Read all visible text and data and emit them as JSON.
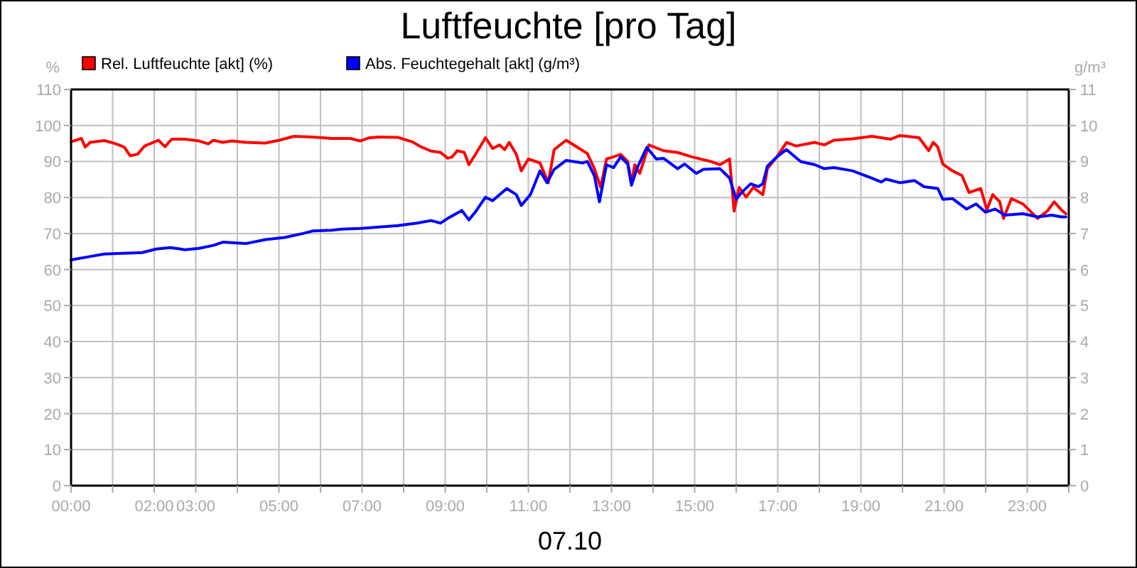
{
  "chart_data": {
    "type": "line",
    "title": "Luftfeuchte [pro Tag]",
    "xlabel": "07.10",
    "ylabel": "%",
    "y2label": "g/m³",
    "xlim": [
      0,
      24
    ],
    "xticks": [
      {
        "value": 0,
        "label": "00:00"
      },
      {
        "value": 1,
        "label": null
      },
      {
        "value": 2,
        "label": "02:00"
      },
      {
        "value": 3,
        "label": "03:00"
      },
      {
        "value": 4,
        "label": null
      },
      {
        "value": 5,
        "label": "05:00"
      },
      {
        "value": 6,
        "label": null
      },
      {
        "value": 7,
        "label": "07:00"
      },
      {
        "value": 8,
        "label": null
      },
      {
        "value": 9,
        "label": "09:00"
      },
      {
        "value": 10,
        "label": null
      },
      {
        "value": 11,
        "label": "11:00"
      },
      {
        "value": 12,
        "label": null
      },
      {
        "value": 13,
        "label": "13:00"
      },
      {
        "value": 14,
        "label": null
      },
      {
        "value": 15,
        "label": "15:00"
      },
      {
        "value": 16,
        "label": null
      },
      {
        "value": 17,
        "label": "17:00"
      },
      {
        "value": 18,
        "label": null
      },
      {
        "value": 19,
        "label": "19:00"
      },
      {
        "value": 20,
        "label": null
      },
      {
        "value": 21,
        "label": "21:00"
      },
      {
        "value": 22,
        "label": null
      },
      {
        "value": 23,
        "label": "23:00"
      },
      {
        "value": 24,
        "label": null
      }
    ],
    "ylim": [
      0,
      110
    ],
    "yticks": [
      0,
      10,
      20,
      30,
      40,
      50,
      60,
      70,
      80,
      90,
      100,
      110
    ],
    "y2lim": [
      0,
      11
    ],
    "y2ticks": [
      0,
      1,
      2,
      3,
      4,
      5,
      6,
      7,
      8,
      9,
      10,
      11
    ],
    "grid": true,
    "legend": "top left",
    "marker": "none",
    "line_style": "solid",
    "series": [
      {
        "name": "Rel. Luftfeuchte [akt] (%)",
        "color": "#ff0000",
        "x": [
          0,
          0.25,
          0.34,
          0.46,
          0.8,
          1.03,
          1.28,
          1.42,
          1.6,
          1.77,
          2.1,
          2.26,
          2.42,
          2.74,
          3.08,
          3.3,
          3.42,
          3.65,
          3.87,
          4.2,
          4.67,
          5.01,
          5.36,
          5.81,
          6.27,
          6.72,
          6.95,
          7.18,
          7.41,
          7.86,
          8.2,
          8.43,
          8.66,
          8.89,
          9.06,
          9.17,
          9.29,
          9.46,
          9.57,
          9.74,
          9.97,
          10.14,
          10.31,
          10.43,
          10.54,
          10.71,
          10.83,
          11.0,
          11.28,
          11.48,
          11.62,
          11.91,
          12.42,
          12.59,
          12.74,
          12.88,
          13.05,
          13.22,
          13.39,
          13.48,
          13.56,
          13.68,
          13.9,
          14.25,
          14.59,
          14.93,
          15.39,
          15.61,
          15.84,
          15.95,
          16.07,
          16.24,
          16.41,
          16.64,
          16.75,
          16.98,
          17.21,
          17.44,
          17.89,
          18.12,
          18.35,
          18.8,
          19.26,
          19.71,
          19.94,
          20.4,
          20.63,
          20.74,
          20.85,
          20.97,
          21.2,
          21.43,
          21.6,
          21.88,
          22.03,
          22.17,
          22.34,
          22.43,
          22.62,
          22.9,
          23.25,
          23.48,
          23.65,
          23.82,
          23.93
        ],
        "values": [
          95.5,
          96.4,
          94,
          95.3,
          95.8,
          95.1,
          94,
          91.6,
          92,
          94.3,
          95.9,
          94.1,
          96.2,
          96.2,
          95.7,
          94.9,
          95.9,
          95.3,
          95.7,
          95.3,
          95.1,
          95.9,
          97,
          96.8,
          96.4,
          96.4,
          95.7,
          96.6,
          96.8,
          96.7,
          95.5,
          94,
          92.9,
          92.5,
          90.9,
          91.3,
          93,
          92.5,
          89.1,
          92.2,
          96.6,
          93.6,
          94.6,
          93.3,
          95.3,
          92,
          87.4,
          90.7,
          89.6,
          84.1,
          93.3,
          95.9,
          92.2,
          88,
          82.8,
          90.7,
          91.3,
          92,
          90,
          84.1,
          89.1,
          86.7,
          94.6,
          93,
          92.5,
          91.3,
          90,
          89.1,
          90.7,
          76.2,
          82.8,
          80.1,
          82.8,
          80.8,
          88,
          91.3,
          95.3,
          94.3,
          95.3,
          94.6,
          95.9,
          96.3,
          97,
          96.2,
          97.2,
          96.6,
          93,
          95.3,
          94,
          89.3,
          87.4,
          86.1,
          81.4,
          82.5,
          76.6,
          80.8,
          78.8,
          74.2,
          79.7,
          78.2,
          74.2,
          76.2,
          78.8,
          76.6,
          75.5
        ]
      },
      {
        "name": "Abs. Feuchtegehalt [akt] (g/m³)",
        "color": "#0000ff",
        "axis": "y2",
        "x": [
          0,
          0.4,
          0.8,
          1.71,
          2.05,
          2.39,
          2.74,
          3.08,
          3.42,
          3.65,
          4.2,
          4.67,
          5.13,
          5.58,
          5.81,
          6.27,
          6.5,
          6.95,
          7.41,
          7.86,
          8.32,
          8.66,
          8.89,
          9.06,
          9.4,
          9.57,
          9.74,
          9.97,
          10.14,
          10.48,
          10.71,
          10.83,
          11.05,
          11.28,
          11.45,
          11.62,
          11.91,
          12.31,
          12.42,
          12.59,
          12.71,
          12.88,
          13.05,
          13.22,
          13.39,
          13.48,
          13.62,
          13.85,
          14.08,
          14.25,
          14.59,
          14.76,
          15.04,
          15.21,
          15.61,
          15.84,
          16.0,
          16.13,
          16.35,
          16.53,
          16.64,
          16.75,
          16.98,
          17.21,
          17.55,
          17.89,
          18.12,
          18.35,
          18.8,
          19.26,
          19.49,
          19.6,
          19.94,
          20.29,
          20.52,
          20.85,
          20.97,
          21.2,
          21.54,
          21.77,
          22.0,
          22.23,
          22.46,
          22.9,
          23.25,
          23.59,
          23.82,
          23.93
        ],
        "values": [
          6.27,
          6.35,
          6.43,
          6.47,
          6.57,
          6.61,
          6.55,
          6.59,
          6.67,
          6.76,
          6.72,
          6.83,
          6.89,
          7.0,
          7.07,
          7.09,
          7.12,
          7.14,
          7.18,
          7.22,
          7.29,
          7.36,
          7.29,
          7.42,
          7.64,
          7.38,
          7.62,
          8.01,
          7.91,
          8.25,
          8.08,
          7.78,
          8.08,
          8.74,
          8.41,
          8.78,
          9.03,
          8.96,
          9.0,
          8.6,
          7.88,
          8.91,
          8.83,
          9.13,
          8.93,
          8.34,
          8.83,
          9.39,
          9.07,
          9.09,
          8.8,
          8.93,
          8.67,
          8.78,
          8.8,
          8.54,
          7.95,
          8.14,
          8.38,
          8.3,
          8.38,
          8.87,
          9.13,
          9.33,
          9.0,
          8.91,
          8.8,
          8.83,
          8.74,
          8.54,
          8.43,
          8.51,
          8.41,
          8.47,
          8.3,
          8.25,
          7.95,
          7.97,
          7.68,
          7.82,
          7.59,
          7.68,
          7.51,
          7.55,
          7.46,
          7.51,
          7.46,
          7.46
        ]
      }
    ]
  }
}
